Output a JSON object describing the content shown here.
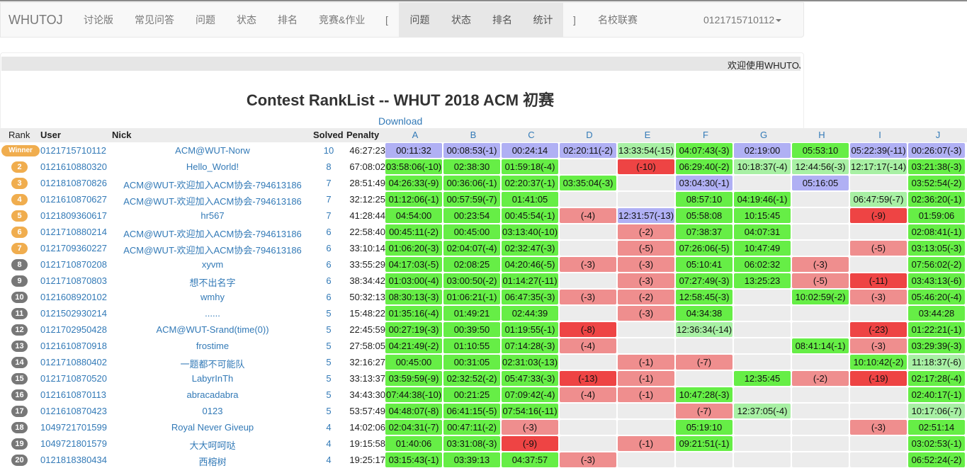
{
  "nav": {
    "brand": "WHUTOJ",
    "items": [
      "讨论版",
      "常见问答",
      "问题",
      "状态",
      "排名",
      "竞赛&作业"
    ],
    "open_bracket": "[",
    "contest_items": [
      "问题",
      "状态",
      "排名",
      "统计"
    ],
    "close_bracket": "]",
    "school": "名校联赛",
    "user": "0121715710112"
  },
  "marquee": "欢迎使用WHUTOJ",
  "title": "Contest RankList -- WHUT 2018 ACM 初赛",
  "download": "Download",
  "columns": {
    "rank": "Rank",
    "user": "User",
    "nick": "Nick",
    "solved": "Solved",
    "penalty": "Penalty"
  },
  "problems": [
    "A",
    "B",
    "C",
    "D",
    "E",
    "F",
    "G",
    "H",
    "I",
    "J"
  ],
  "cell_legend": {
    "F": "first-solve",
    "A": "accepted",
    "G": "accepted-late",
    "R": "wrong-attempts",
    "D": "many-wrong-attempts",
    "E": "empty"
  },
  "colors": {
    "first_solve": "#b0b0f4",
    "accepted": "#66ee46",
    "accepted_late": "#a8f0a4",
    "wrong": "#ef8e8e",
    "many_wrong": "#ee4444",
    "empty": "#ececec",
    "link": "#337ab7",
    "medal": "#f0ad4e"
  },
  "rows": [
    {
      "rank": "Winner",
      "badge": "win",
      "user": "0121715710112",
      "nick": "ACM@WUT-Norw",
      "solved": "10",
      "penalty": "46:27:23",
      "cells": [
        [
          "F",
          "00:11:32"
        ],
        [
          "F",
          "00:08:53(-1)"
        ],
        [
          "F",
          "00:24:14"
        ],
        [
          "F",
          "02:20:11(-2)"
        ],
        [
          "G",
          "13:33:54(-15)"
        ],
        [
          "A",
          "04:07:43(-3)"
        ],
        [
          "F",
          "02:19:00"
        ],
        [
          "A",
          "05:53:10"
        ],
        [
          "F",
          "05:22:39(-11)"
        ],
        [
          "F",
          "00:26:07(-3)"
        ]
      ]
    },
    {
      "rank": "2",
      "badge": "gold",
      "user": "0121610880320",
      "nick": "Hello_World!",
      "solved": "8",
      "penalty": "67:08:02",
      "cells": [
        [
          "A",
          "03:58:06(-10)"
        ],
        [
          "A",
          "02:38:30"
        ],
        [
          "A",
          "01:59:18(-4)"
        ],
        [
          "E",
          ""
        ],
        [
          "D",
          "(-10)"
        ],
        [
          "A",
          "06:29:40(-2)"
        ],
        [
          "G",
          "10:18:37(-4)"
        ],
        [
          "G",
          "12:44:56(-3)"
        ],
        [
          "G",
          "12:17:17(-14)"
        ],
        [
          "A",
          "03:21:38(-3)"
        ]
      ]
    },
    {
      "rank": "3",
      "badge": "gold",
      "user": "0121810870826",
      "nick": "ACM@WUT-欢迎加入ACM协会-794613186",
      "solved": "7",
      "penalty": "28:51:49",
      "cells": [
        [
          "A",
          "04:26:33(-9)"
        ],
        [
          "A",
          "00:36:06(-1)"
        ],
        [
          "A",
          "02:20:37(-1)"
        ],
        [
          "A",
          "03:35:04(-3)"
        ],
        [
          "E",
          ""
        ],
        [
          "F",
          "03:04:30(-1)"
        ],
        [
          "E",
          ""
        ],
        [
          "F",
          "05:16:05"
        ],
        [
          "E",
          ""
        ],
        [
          "A",
          "03:52:54(-2)"
        ]
      ]
    },
    {
      "rank": "4",
      "badge": "gold",
      "user": "0121610870627",
      "nick": "ACM@WUT-欢迎加入ACM协会-794613186",
      "solved": "7",
      "penalty": "32:12:25",
      "cells": [
        [
          "A",
          "01:12:06(-1)"
        ],
        [
          "A",
          "00:57:59(-7)"
        ],
        [
          "A",
          "01:41:05"
        ],
        [
          "E",
          ""
        ],
        [
          "E",
          ""
        ],
        [
          "A",
          "08:57:10"
        ],
        [
          "A",
          "04:19:46(-1)"
        ],
        [
          "E",
          ""
        ],
        [
          "G",
          "06:47:59(-7)"
        ],
        [
          "A",
          "02:36:20(-1)"
        ]
      ]
    },
    {
      "rank": "5",
      "badge": "gold",
      "user": "0121809360617",
      "nick": "hr567",
      "solved": "7",
      "penalty": "41:28:44",
      "cells": [
        [
          "A",
          "04:54:00"
        ],
        [
          "A",
          "00:23:54"
        ],
        [
          "A",
          "00:45:54(-1)"
        ],
        [
          "R",
          "(-4)"
        ],
        [
          "F",
          "12:31:57(-13)"
        ],
        [
          "A",
          "05:58:08"
        ],
        [
          "A",
          "10:15:45"
        ],
        [
          "E",
          ""
        ],
        [
          "D",
          "(-9)"
        ],
        [
          "A",
          "01:59:06"
        ]
      ]
    },
    {
      "rank": "6",
      "badge": "gold",
      "user": "0121710880214",
      "nick": "ACM@WUT-欢迎加入ACM协会-794613186",
      "solved": "6",
      "penalty": "22:58:40",
      "cells": [
        [
          "A",
          "00:45:11(-2)"
        ],
        [
          "A",
          "00:45:00"
        ],
        [
          "A",
          "03:13:40(-10)"
        ],
        [
          "E",
          ""
        ],
        [
          "R",
          "(-2)"
        ],
        [
          "A",
          "07:38:37"
        ],
        [
          "A",
          "04:07:31"
        ],
        [
          "E",
          ""
        ],
        [
          "E",
          ""
        ],
        [
          "A",
          "02:08:41(-1)"
        ]
      ]
    },
    {
      "rank": "7",
      "badge": "gold",
      "user": "0121709360227",
      "nick": "ACM@WUT-欢迎加入ACM协会-794613186",
      "solved": "6",
      "penalty": "33:10:14",
      "cells": [
        [
          "A",
          "01:06:20(-3)"
        ],
        [
          "A",
          "02:04:07(-4)"
        ],
        [
          "A",
          "02:32:47(-3)"
        ],
        [
          "E",
          ""
        ],
        [
          "R",
          "(-5)"
        ],
        [
          "A",
          "07:26:06(-5)"
        ],
        [
          "A",
          "10:47:49"
        ],
        [
          "E",
          ""
        ],
        [
          "R",
          "(-5)"
        ],
        [
          "A",
          "03:13:05(-3)"
        ]
      ]
    },
    {
      "rank": "8",
      "badge": "gray",
      "user": "0121710870208",
      "nick": "xyvm",
      "solved": "6",
      "penalty": "33:55:29",
      "cells": [
        [
          "A",
          "04:17:03(-5)"
        ],
        [
          "A",
          "02:08:25"
        ],
        [
          "A",
          "04:20:46(-5)"
        ],
        [
          "R",
          "(-3)"
        ],
        [
          "R",
          "(-3)"
        ],
        [
          "A",
          "05:10:41"
        ],
        [
          "A",
          "06:02:32"
        ],
        [
          "R",
          "(-3)"
        ],
        [
          "E",
          ""
        ],
        [
          "A",
          "07:56:02(-2)"
        ]
      ]
    },
    {
      "rank": "9",
      "badge": "gray",
      "user": "0121710870803",
      "nick": "想不出名字",
      "solved": "6",
      "penalty": "38:34:42",
      "cells": [
        [
          "A",
          "01:03:00(-4)"
        ],
        [
          "A",
          "03:00:50(-2)"
        ],
        [
          "A",
          "01:14:27(-11)"
        ],
        [
          "E",
          ""
        ],
        [
          "R",
          "(-3)"
        ],
        [
          "A",
          "07:27:49(-3)"
        ],
        [
          "A",
          "13:25:23"
        ],
        [
          "R",
          "(-5)"
        ],
        [
          "D",
          "(-11)"
        ],
        [
          "A",
          "03:43:13(-6)"
        ]
      ]
    },
    {
      "rank": "10",
      "badge": "gray",
      "user": "0121608920102",
      "nick": "wmhy",
      "solved": "6",
      "penalty": "50:32:13",
      "cells": [
        [
          "A",
          "08:30:13(-3)"
        ],
        [
          "A",
          "01:06:21(-1)"
        ],
        [
          "A",
          "06:47:35(-3)"
        ],
        [
          "R",
          "(-3)"
        ],
        [
          "R",
          "(-2)"
        ],
        [
          "A",
          "12:58:45(-3)"
        ],
        [
          "E",
          ""
        ],
        [
          "A",
          "10:02:59(-2)"
        ],
        [
          "R",
          "(-3)"
        ],
        [
          "A",
          "05:46:20(-4)"
        ]
      ]
    },
    {
      "rank": "11",
      "badge": "gray",
      "user": "0121502930214",
      "nick": "......",
      "solved": "5",
      "penalty": "15:48:22",
      "cells": [
        [
          "A",
          "01:35:16(-4)"
        ],
        [
          "A",
          "01:49:21"
        ],
        [
          "A",
          "02:44:39"
        ],
        [
          "E",
          ""
        ],
        [
          "R",
          "(-3)"
        ],
        [
          "A",
          "04:34:38"
        ],
        [
          "E",
          ""
        ],
        [
          "E",
          ""
        ],
        [
          "E",
          ""
        ],
        [
          "A",
          "03:44:28"
        ]
      ]
    },
    {
      "rank": "12",
      "badge": "gray",
      "user": "0121702950428",
      "nick": "ACM@WUT-Srand(time(0))",
      "solved": "5",
      "penalty": "22:45:59",
      "cells": [
        [
          "A",
          "00:27:19(-3)"
        ],
        [
          "A",
          "00:39:50"
        ],
        [
          "A",
          "01:19:55(-1)"
        ],
        [
          "D",
          "(-8)"
        ],
        [
          "E",
          ""
        ],
        [
          "G",
          "12:36:34(-14)"
        ],
        [
          "E",
          ""
        ],
        [
          "E",
          ""
        ],
        [
          "D",
          "(-23)"
        ],
        [
          "A",
          "01:22:21(-1)"
        ]
      ]
    },
    {
      "rank": "13",
      "badge": "gray",
      "user": "0121610870918",
      "nick": "frostime",
      "solved": "5",
      "penalty": "27:58:05",
      "cells": [
        [
          "A",
          "04:21:49(-2)"
        ],
        [
          "A",
          "01:10:55"
        ],
        [
          "A",
          "07:14:28(-3)"
        ],
        [
          "R",
          "(-4)"
        ],
        [
          "E",
          ""
        ],
        [
          "E",
          ""
        ],
        [
          "E",
          ""
        ],
        [
          "A",
          "08:41:14(-1)"
        ],
        [
          "R",
          "(-3)"
        ],
        [
          "A",
          "03:29:39(-3)"
        ]
      ]
    },
    {
      "rank": "14",
      "badge": "gray",
      "user": "0121710880402",
      "nick": "一题都不可能队",
      "solved": "5",
      "penalty": "32:16:27",
      "cells": [
        [
          "A",
          "00:45:00"
        ],
        [
          "A",
          "00:31:05"
        ],
        [
          "A",
          "02:31:03(-13)"
        ],
        [
          "E",
          ""
        ],
        [
          "R",
          "(-1)"
        ],
        [
          "R",
          "(-7)"
        ],
        [
          "E",
          ""
        ],
        [
          "E",
          ""
        ],
        [
          "A",
          "10:10:42(-2)"
        ],
        [
          "G",
          "11:18:37(-6)"
        ]
      ]
    },
    {
      "rank": "15",
      "badge": "gray",
      "user": "0121710870520",
      "nick": "LabyrInTh",
      "solved": "5",
      "penalty": "33:13:37",
      "cells": [
        [
          "A",
          "03:59:59(-9)"
        ],
        [
          "A",
          "02:32:52(-2)"
        ],
        [
          "A",
          "05:47:33(-3)"
        ],
        [
          "D",
          "(-13)"
        ],
        [
          "R",
          "(-1)"
        ],
        [
          "E",
          ""
        ],
        [
          "A",
          "12:35:45"
        ],
        [
          "R",
          "(-2)"
        ],
        [
          "D",
          "(-19)"
        ],
        [
          "A",
          "02:17:28(-4)"
        ]
      ]
    },
    {
      "rank": "16",
      "badge": "gray",
      "user": "0121610870113",
      "nick": "abracadabra",
      "solved": "5",
      "penalty": "34:43:30",
      "cells": [
        [
          "A",
          "07:44:38(-10)"
        ],
        [
          "A",
          "00:21:25"
        ],
        [
          "A",
          "07:09:42(-4)"
        ],
        [
          "R",
          "(-4)"
        ],
        [
          "R",
          "(-1)"
        ],
        [
          "A",
          "10:47:28(-3)"
        ],
        [
          "E",
          ""
        ],
        [
          "E",
          ""
        ],
        [
          "E",
          ""
        ],
        [
          "A",
          "02:40:17(-1)"
        ]
      ]
    },
    {
      "rank": "17",
      "badge": "gray",
      "user": "0121610870423",
      "nick": "0123",
      "solved": "5",
      "penalty": "53:57:49",
      "cells": [
        [
          "A",
          "04:48:07(-8)"
        ],
        [
          "A",
          "06:41:15(-5)"
        ],
        [
          "A",
          "07:54:16(-11)"
        ],
        [
          "E",
          ""
        ],
        [
          "E",
          ""
        ],
        [
          "R",
          "(-7)"
        ],
        [
          "G",
          "12:37:05(-4)"
        ],
        [
          "E",
          ""
        ],
        [
          "E",
          ""
        ],
        [
          "G",
          "10:17:06(-7)"
        ]
      ]
    },
    {
      "rank": "18",
      "badge": "gray",
      "user": "1049721701599",
      "nick": "Royal Never Giveup",
      "solved": "4",
      "penalty": "14:02:06",
      "cells": [
        [
          "A",
          "02:04:31(-7)"
        ],
        [
          "A",
          "00:47:11(-2)"
        ],
        [
          "R",
          "(-3)"
        ],
        [
          "E",
          ""
        ],
        [
          "E",
          ""
        ],
        [
          "A",
          "05:19:10"
        ],
        [
          "E",
          ""
        ],
        [
          "E",
          ""
        ],
        [
          "R",
          "(-3)"
        ],
        [
          "A",
          "02:51:14"
        ]
      ]
    },
    {
      "rank": "19",
      "badge": "gray",
      "user": "1049721801579",
      "nick": "大大呵呵哒",
      "solved": "4",
      "penalty": "19:15:58",
      "cells": [
        [
          "A",
          "01:40:06"
        ],
        [
          "A",
          "03:31:08(-3)"
        ],
        [
          "D",
          "(-9)"
        ],
        [
          "E",
          ""
        ],
        [
          "R",
          "(-1)"
        ],
        [
          "A",
          "09:21:51(-1)"
        ],
        [
          "E",
          ""
        ],
        [
          "E",
          ""
        ],
        [
          "E",
          ""
        ],
        [
          "A",
          "03:02:53(-1)"
        ]
      ]
    },
    {
      "rank": "20",
      "badge": "gray",
      "user": "0121818380434",
      "nick": "西榕树",
      "solved": "4",
      "penalty": "19:25:17",
      "cells": [
        [
          "A",
          "03:15:43(-1)"
        ],
        [
          "A",
          "03:39:13"
        ],
        [
          "A",
          "04:37:57"
        ],
        [
          "R",
          "(-3)"
        ],
        [
          "E",
          ""
        ],
        [
          "E",
          ""
        ],
        [
          "E",
          ""
        ],
        [
          "E",
          ""
        ],
        [
          "E",
          ""
        ],
        [
          "A",
          "06:52:24(-2)"
        ]
      ]
    }
  ]
}
